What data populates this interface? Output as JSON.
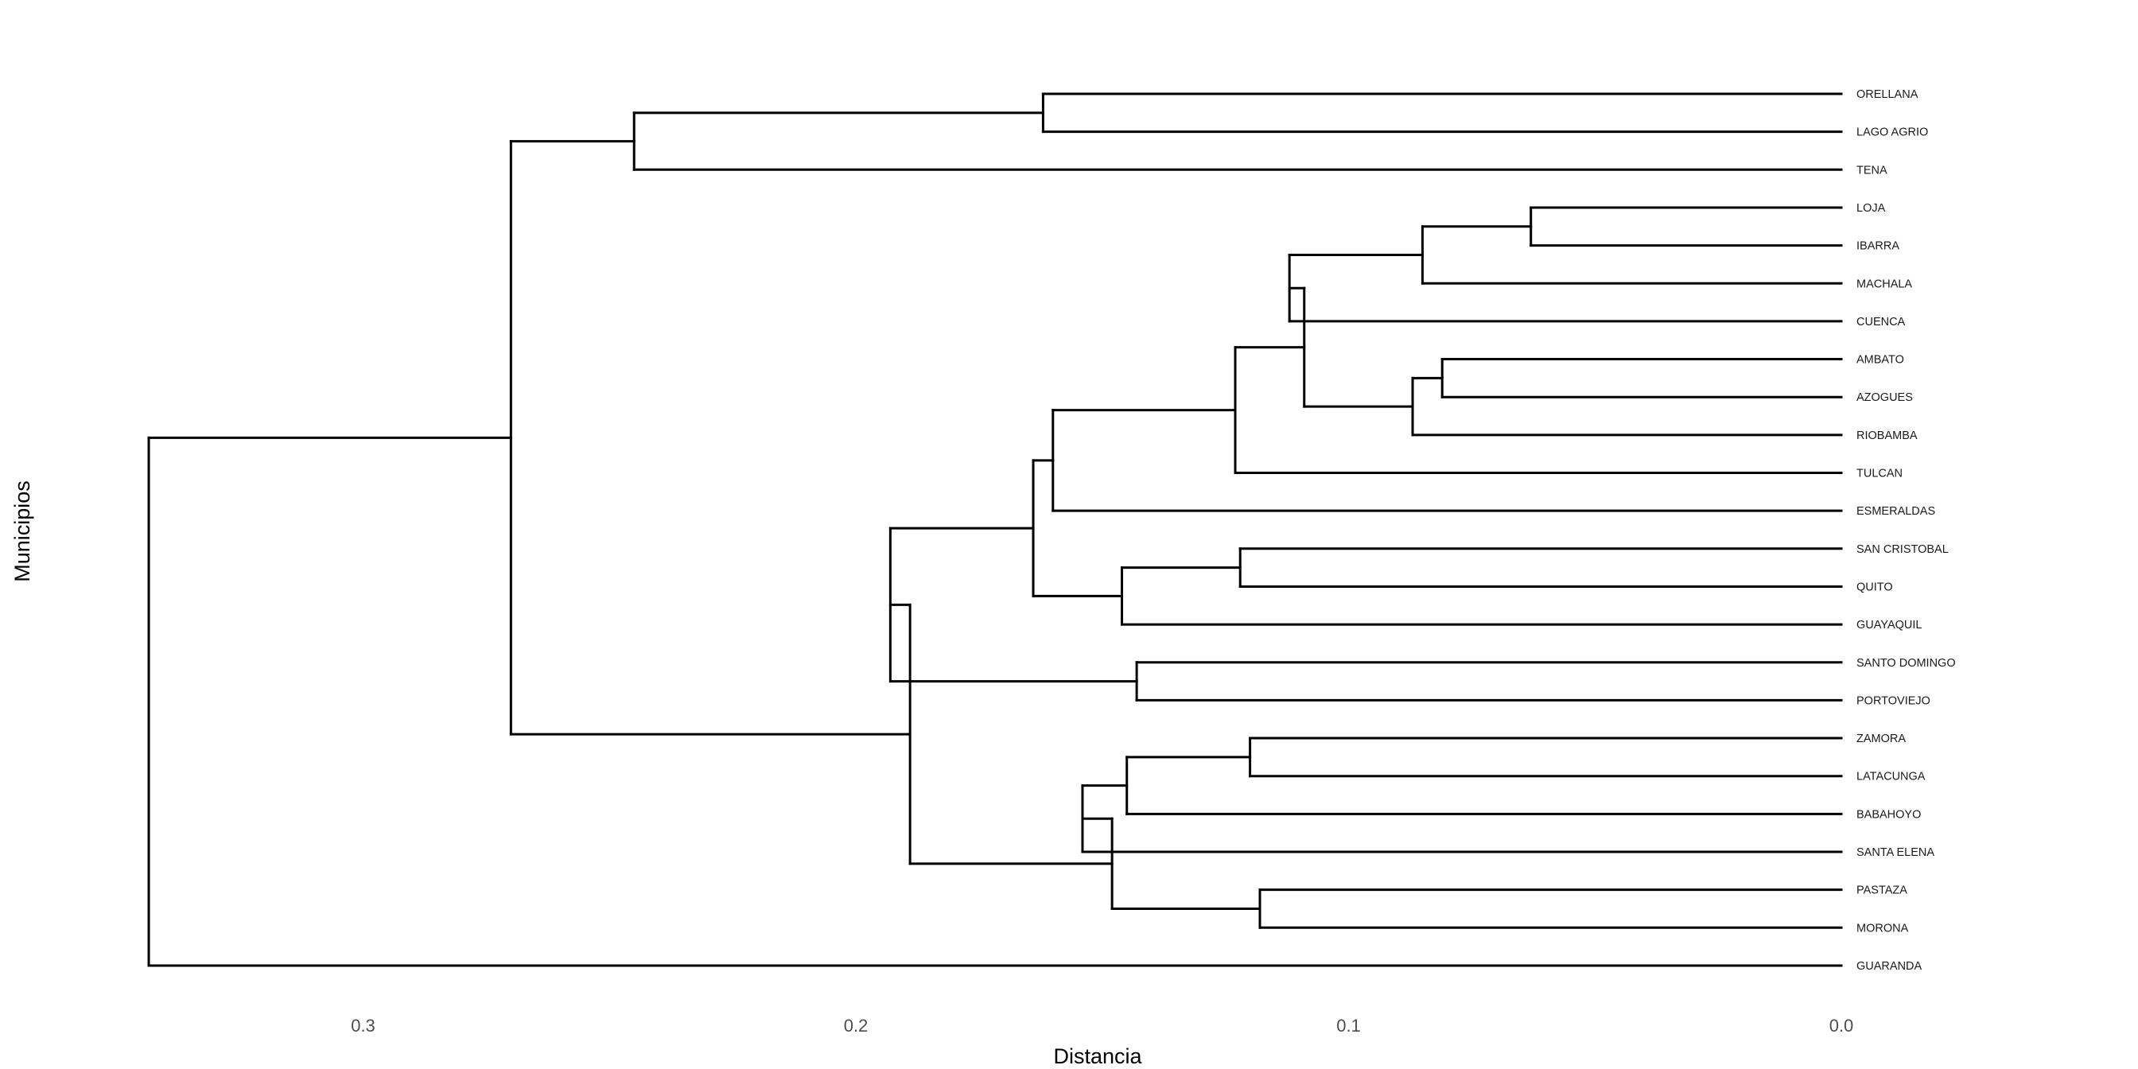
{
  "chart_data": {
    "type": "dendrogram",
    "orientation": "horizontal",
    "title": "",
    "xlabel": "Distancia",
    "ylabel": "Municipios",
    "x_axis_reversed": true,
    "xlim": [
      0.3435,
      0.0
    ],
    "xticks": [
      0.3,
      0.2,
      0.1,
      0.0
    ],
    "xtick_labels": [
      "0.3",
      "0.2",
      "0.1",
      "0.0"
    ],
    "grid": false,
    "leaves": [
      "ORELLANA",
      "LAGO AGRIO",
      "TENA",
      "LOJA",
      "IBARRA",
      "MACHALA",
      "CUENCA",
      "AMBATO",
      "AZOGUES",
      "RIOBAMBA",
      "TULCAN",
      "ESMERALDAS",
      "SAN CRISTOBAL",
      "QUITO",
      "GUAYAQUIL",
      "SANTO DOMINGO",
      "PORTOVIEJO",
      "ZAMORA",
      "LATACUNGA",
      "BABAHOYO",
      "SANTA ELENA",
      "PASTAZA",
      "MORONA",
      "GUARANDA"
    ],
    "merges": [
      {
        "id": "m1",
        "left": "ORELLANA",
        "right": "LAGO AGRIO",
        "height": 0.162
      },
      {
        "id": "m2",
        "left": "m1",
        "right": "TENA",
        "height": 0.245
      },
      {
        "id": "m3",
        "left": "LOJA",
        "right": "IBARRA",
        "height": 0.063
      },
      {
        "id": "m4",
        "left": "m3",
        "right": "MACHALA",
        "height": 0.085
      },
      {
        "id": "m5",
        "left": "m4",
        "right": "CUENCA",
        "height": 0.112
      },
      {
        "id": "m6",
        "left": "AMBATO",
        "right": "AZOGUES",
        "height": 0.081
      },
      {
        "id": "m7",
        "left": "m6",
        "right": "RIOBAMBA",
        "height": 0.087
      },
      {
        "id": "m8",
        "left": "m5",
        "right": "m7",
        "height": 0.109
      },
      {
        "id": "m9",
        "left": "m8",
        "right": "TULCAN",
        "height": 0.123
      },
      {
        "id": "m10",
        "left": "m9",
        "right": "ESMERALDAS",
        "height": 0.16
      },
      {
        "id": "m11",
        "left": "SAN CRISTOBAL",
        "right": "QUITO",
        "height": 0.122
      },
      {
        "id": "m12",
        "left": "m11",
        "right": "GUAYAQUIL",
        "height": 0.146
      },
      {
        "id": "m13",
        "left": "m10",
        "right": "m12",
        "height": 0.164
      },
      {
        "id": "m14",
        "left": "SANTO DOMINGO",
        "right": "PORTOVIEJO",
        "height": 0.143
      },
      {
        "id": "m15",
        "left": "m13",
        "right": "m14",
        "height": 0.193
      },
      {
        "id": "m16",
        "left": "ZAMORA",
        "right": "LATACUNGA",
        "height": 0.12
      },
      {
        "id": "m17",
        "left": "m16",
        "right": "BABAHOYO",
        "height": 0.145
      },
      {
        "id": "m18",
        "left": "m17",
        "right": "SANTA ELENA",
        "height": 0.154
      },
      {
        "id": "m19",
        "left": "PASTAZA",
        "right": "MORONA",
        "height": 0.118
      },
      {
        "id": "m20",
        "left": "m18",
        "right": "m19",
        "height": 0.148
      },
      {
        "id": "m21",
        "left": "m15",
        "right": "m20",
        "height": 0.189
      },
      {
        "id": "m22",
        "left": "m2",
        "right": "m21",
        "height": 0.27
      },
      {
        "id": "m23",
        "left": "m22",
        "right": "GUARANDA",
        "height": 0.3435
      }
    ]
  }
}
